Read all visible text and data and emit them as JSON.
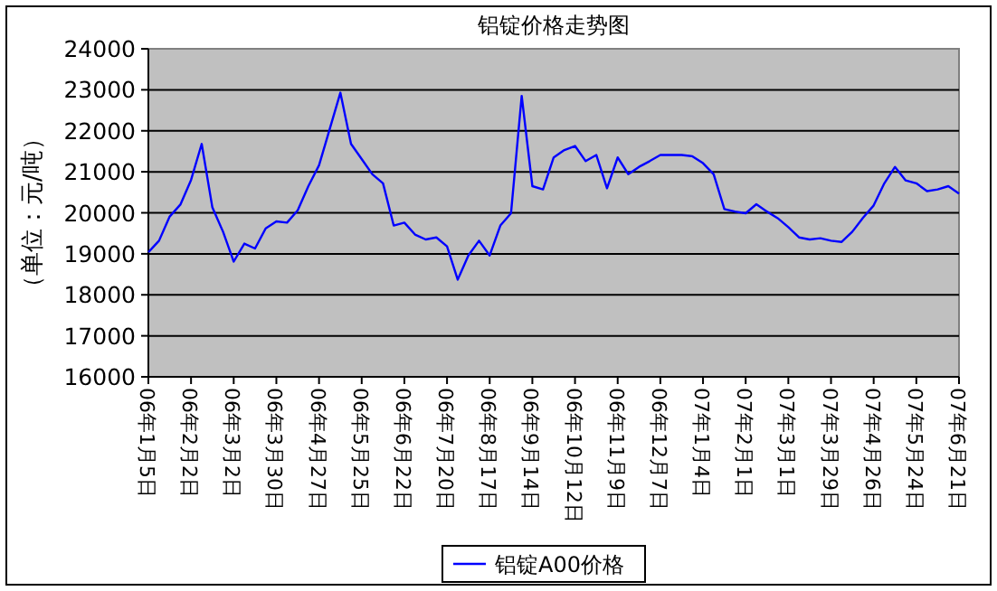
{
  "chart_data": {
    "type": "line",
    "title": "铝锭价格走势图",
    "ylabel": "（单位：元/吨）",
    "categories": [
      "06年1月5日",
      null,
      null,
      null,
      "06年2月2日",
      null,
      null,
      null,
      "06年3月2日",
      null,
      null,
      null,
      "06年3月30日",
      null,
      null,
      null,
      "06年4月27日",
      null,
      null,
      null,
      "06年5月25日",
      null,
      null,
      null,
      "06年6月22日",
      null,
      null,
      null,
      "06年7月20日",
      null,
      null,
      null,
      "06年8月17日",
      null,
      null,
      null,
      "06年9月14日",
      null,
      null,
      null,
      "06年10月12日",
      null,
      null,
      null,
      "06年11月9日",
      null,
      null,
      null,
      "06年12月7日",
      null,
      null,
      null,
      "07年1月4日",
      null,
      null,
      null,
      "07年2月1日",
      null,
      null,
      null,
      "07年3月1日",
      null,
      null,
      null,
      "07年3月29日",
      null,
      null,
      null,
      "07年4月26日",
      null,
      null,
      null,
      "07年5月24日",
      null,
      null,
      null,
      "07年6月21日"
    ],
    "series": [
      {
        "name": "铝锭A00价格",
        "color": "#0000ff",
        "values": [
          19040,
          19320,
          19910,
          20200,
          20800,
          21680,
          20130,
          19540,
          18810,
          19250,
          19130,
          19620,
          19790,
          19760,
          20060,
          20650,
          21160,
          22040,
          22930,
          21680,
          21310,
          20940,
          20720,
          19690,
          19760,
          19470,
          19350,
          19400,
          19180,
          18370,
          18960,
          19320,
          18960,
          19690,
          19990,
          22850,
          20650,
          20570,
          21350,
          21530,
          21630,
          21260,
          21410,
          20600,
          21350,
          20940,
          21120,
          21260,
          21410,
          21410,
          21410,
          21380,
          21210,
          20940,
          20090,
          20030,
          19990,
          20210,
          20030,
          19870,
          19650,
          19400,
          19350,
          19380,
          19320,
          19290,
          19540,
          19880,
          20180,
          20720,
          21120,
          20790,
          20720,
          20530,
          20570,
          20650,
          20470
        ]
      }
    ],
    "ylim": [
      16000,
      24000
    ],
    "yticks": [
      16000,
      17000,
      18000,
      19000,
      20000,
      21000,
      22000,
      23000,
      24000
    ],
    "grid": "y",
    "legend": "bottom"
  }
}
